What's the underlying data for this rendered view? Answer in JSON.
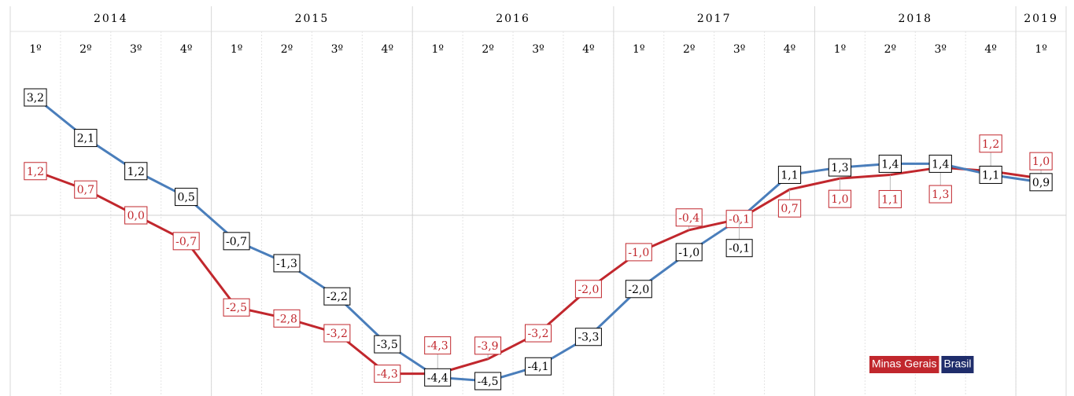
{
  "chart_data": {
    "type": "line",
    "year_groups": [
      {
        "label": "2014",
        "span": 4
      },
      {
        "label": "2015",
        "span": 4
      },
      {
        "label": "2016",
        "span": 4
      },
      {
        "label": "2017",
        "span": 4
      },
      {
        "label": "2018",
        "span": 4
      },
      {
        "label": "2019",
        "span": 1
      }
    ],
    "categories": [
      "1º",
      "2º",
      "3º",
      "4º",
      "1º",
      "2º",
      "3º",
      "4º",
      "1º",
      "2º",
      "3º",
      "4º",
      "1º",
      "2º",
      "3º",
      "4º",
      "1º",
      "2º",
      "3º",
      "4º",
      "1º"
    ],
    "series": [
      {
        "name": "Minas Gerais",
        "color": "#c1272d",
        "label_color": "#c1272d",
        "legend_color": "#c1272d",
        "values": [
          1.2,
          0.7,
          0.0,
          -0.7,
          -2.5,
          -2.8,
          -3.2,
          -4.3,
          -4.3,
          -3.9,
          -3.2,
          -2.0,
          -1.0,
          -0.4,
          -0.1,
          0.7,
          1.0,
          1.1,
          1.3,
          1.2,
          1.0
        ],
        "value_labels": [
          "1,2",
          "0,7",
          "0,0",
          "-0,7",
          "-2,5",
          "-2,8",
          "-3,2",
          "-4,3",
          "-4,3",
          "-3,9",
          "-3,2",
          "-2,0",
          "-1,0",
          "-0,4",
          "-0,1",
          "0,7",
          "1,0",
          "1,1",
          "1,3",
          "1,2",
          "1,0"
        ]
      },
      {
        "name": "Brasil",
        "color": "#4a7ebb",
        "label_color": "#000000",
        "legend_color": "#1f2d6b",
        "values": [
          3.2,
          2.1,
          1.2,
          0.5,
          -0.7,
          -1.3,
          -2.2,
          -3.5,
          -4.4,
          -4.5,
          -4.1,
          -3.3,
          -2.0,
          -1.0,
          -0.1,
          1.1,
          1.3,
          1.4,
          1.4,
          1.1,
          0.9
        ],
        "value_labels": [
          "3,2",
          "2,1",
          "1,2",
          "0,5",
          "-0,7",
          "-1,3",
          "-2,2",
          "-3,5",
          "-4,4",
          "-4,5",
          "-4,1",
          "-3,3",
          "-2,0",
          "-1,0",
          "-0,1",
          "1,1",
          "1,3",
          "1,4",
          "1,4",
          "1,1",
          "0,9"
        ]
      }
    ]
  }
}
